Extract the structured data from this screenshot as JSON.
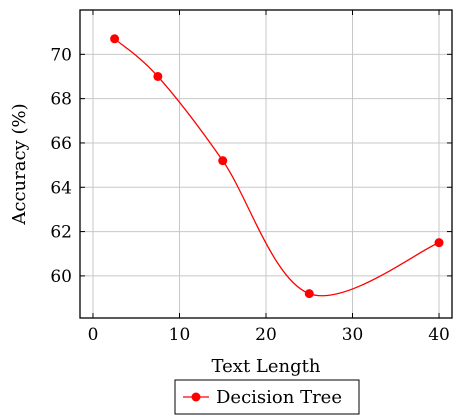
{
  "chart_data": {
    "type": "line",
    "xlabel": "Text Length",
    "ylabel": "Accuracy (%)",
    "xlim": [
      -1.5,
      41.5
    ],
    "ylim": [
      58.1,
      72.0
    ],
    "xticks": [
      0,
      10,
      20,
      30,
      40
    ],
    "yticks": [
      60,
      62,
      64,
      66,
      68,
      70
    ],
    "grid": true,
    "legend_position": "bottom-center",
    "series": [
      {
        "name": "Decision Tree",
        "color": "#ff0000",
        "marker": "circle",
        "x": [
          2.5,
          7.5,
          15,
          25,
          40
        ],
        "y": [
          70.7,
          69.0,
          65.2,
          59.2,
          61.5
        ]
      }
    ]
  }
}
